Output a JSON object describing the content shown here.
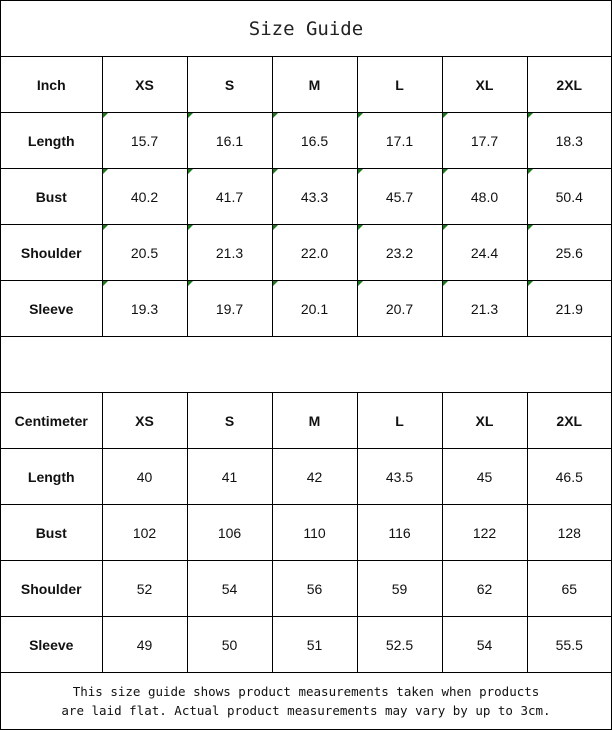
{
  "title": "Size Guide",
  "inch_table": {
    "header": [
      "Inch",
      "XS",
      "S",
      "M",
      "L",
      "XL",
      "2XL"
    ],
    "rows": [
      [
        "Length",
        "15.7",
        "16.1",
        "16.5",
        "17.1",
        "17.7",
        "18.3"
      ],
      [
        "Bust",
        "40.2",
        "41.7",
        "43.3",
        "45.7",
        "48.0",
        "50.4"
      ],
      [
        "Shoulder",
        "20.5",
        "21.3",
        "22.0",
        "23.2",
        "24.4",
        "25.6"
      ],
      [
        "Sleeve",
        "19.3",
        "19.7",
        "20.1",
        "20.7",
        "21.3",
        "21.9"
      ]
    ]
  },
  "cm_table": {
    "header": [
      "Centimeter",
      "XS",
      "S",
      "M",
      "L",
      "XL",
      "2XL"
    ],
    "rows": [
      [
        "Length",
        "40",
        "41",
        "42",
        "43.5",
        "45",
        "46.5"
      ],
      [
        "Bust",
        "102",
        "106",
        "110",
        "116",
        "122",
        "128"
      ],
      [
        "Shoulder",
        "52",
        "54",
        "56",
        "59",
        "62",
        "65"
      ],
      [
        "Sleeve",
        "49",
        "50",
        "51",
        "52.5",
        "54",
        "55.5"
      ]
    ]
  },
  "note": {
    "line1": "This size guide shows product measurements taken when products",
    "line2": "are laid flat. Actual product measurements may vary by up to 3cm."
  },
  "colors": {
    "cell_marker": "#1a7a1a"
  }
}
